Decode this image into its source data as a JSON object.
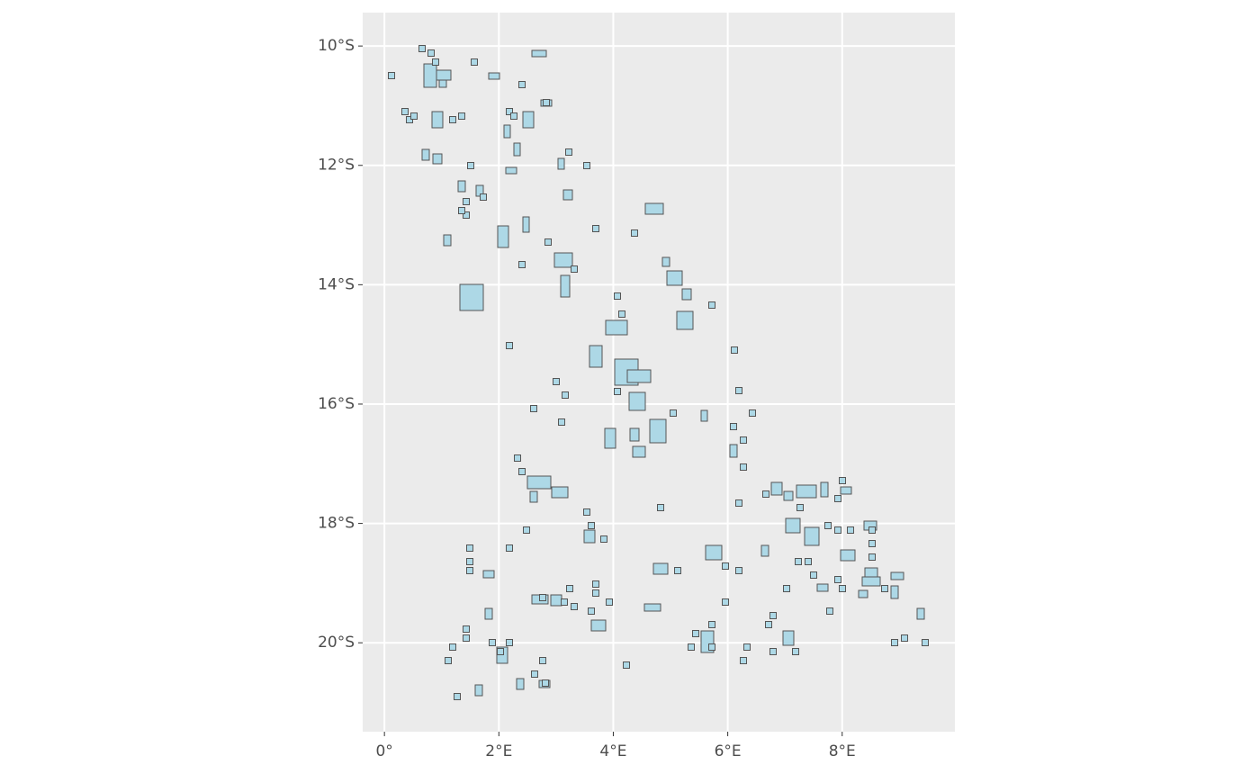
{
  "chart_data": {
    "type": "map",
    "xlim": [
      -0.38,
      9.97
    ],
    "ylim": [
      -21.49,
      -9.44
    ],
    "xticks": [
      {
        "value": 0,
        "label": "0°"
      },
      {
        "value": 2,
        "label": "2°E"
      },
      {
        "value": 4,
        "label": "4°E"
      },
      {
        "value": 6,
        "label": "6°E"
      },
      {
        "value": 8,
        "label": "8°E"
      }
    ],
    "yticks": [
      {
        "value": -10,
        "label": "10°S"
      },
      {
        "value": -12,
        "label": "12°S"
      },
      {
        "value": -14,
        "label": "14°S"
      },
      {
        "value": -16,
        "label": "16°S"
      },
      {
        "value": -18,
        "label": "18°S"
      },
      {
        "value": -20,
        "label": "20°S"
      }
    ],
    "grid": true,
    "color": "#add8e6"
  }
}
